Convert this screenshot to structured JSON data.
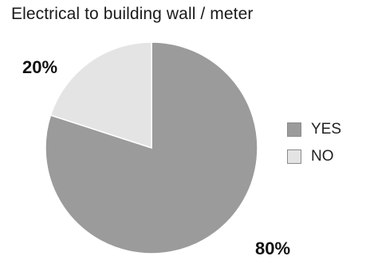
{
  "chart_data": {
    "type": "pie",
    "title": "Electrical to building wall / meter",
    "categories": [
      "YES",
      "NO"
    ],
    "values": [
      80,
      20
    ],
    "labels": [
      "80%",
      "20%"
    ],
    "colors": [
      "#9b9b9b",
      "#e4e4e4"
    ],
    "start_angle_deg": 0,
    "direction": "clockwise",
    "legend": {
      "position": "right",
      "items": [
        {
          "label": "YES",
          "color": "#9b9b9b"
        },
        {
          "label": "NO",
          "color": "#e4e4e4"
        }
      ]
    }
  }
}
